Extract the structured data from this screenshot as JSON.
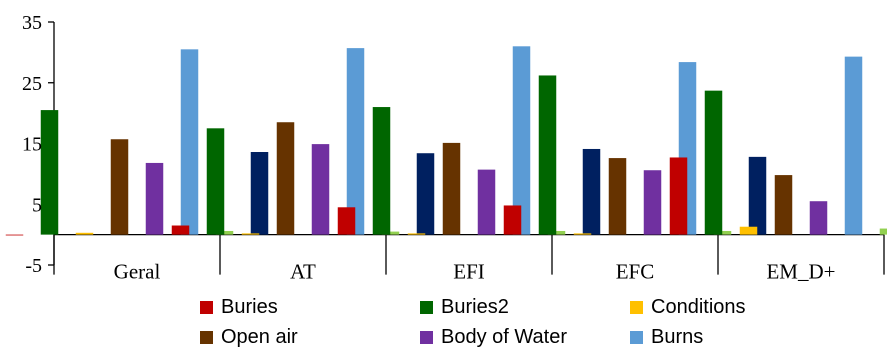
{
  "chart_data": {
    "type": "bar",
    "categories": [
      "Geral",
      "AT",
      "EFI",
      "EFC",
      "EM_D+"
    ],
    "ylim": [
      -5,
      35
    ],
    "yticks": [
      -5,
      5,
      15,
      25,
      35
    ],
    "series": [
      {
        "name": "Buries",
        "color": "#C00000",
        "values": [
          0,
          1.5,
          4.5,
          4.8,
          12.7
        ]
      },
      {
        "name": "Buries2",
        "color": "#006600",
        "values": [
          20.5,
          17.5,
          21.0,
          26.2,
          23.7
        ]
      },
      {
        "name": "Conditions",
        "color": "#FFC000",
        "values": [
          0.3,
          0.2,
          0.2,
          0.2,
          1.3
        ]
      },
      {
        "name": "Open air",
        "color": "#663300",
        "values": [
          15.7,
          18.5,
          15.1,
          12.6,
          9.8
        ]
      },
      {
        "name": "Body of Water",
        "color": "#7030A0",
        "values": [
          11.8,
          14.9,
          10.7,
          10.6,
          5.5
        ]
      },
      {
        "name": "Burns",
        "color": "#5B9BD5",
        "values": [
          30.5,
          30.7,
          31.0,
          28.4,
          29.3
        ]
      },
      {
        "name": "",
        "color": "#92D050",
        "values": [
          0.6,
          0.5,
          0.6,
          0.6,
          1.0
        ]
      },
      {
        "name": "",
        "color": "#002060",
        "values": [
          13.6,
          13.4,
          14.1,
          12.8,
          12.4
        ]
      }
    ],
    "grid": false,
    "legend_position": "bottom"
  }
}
